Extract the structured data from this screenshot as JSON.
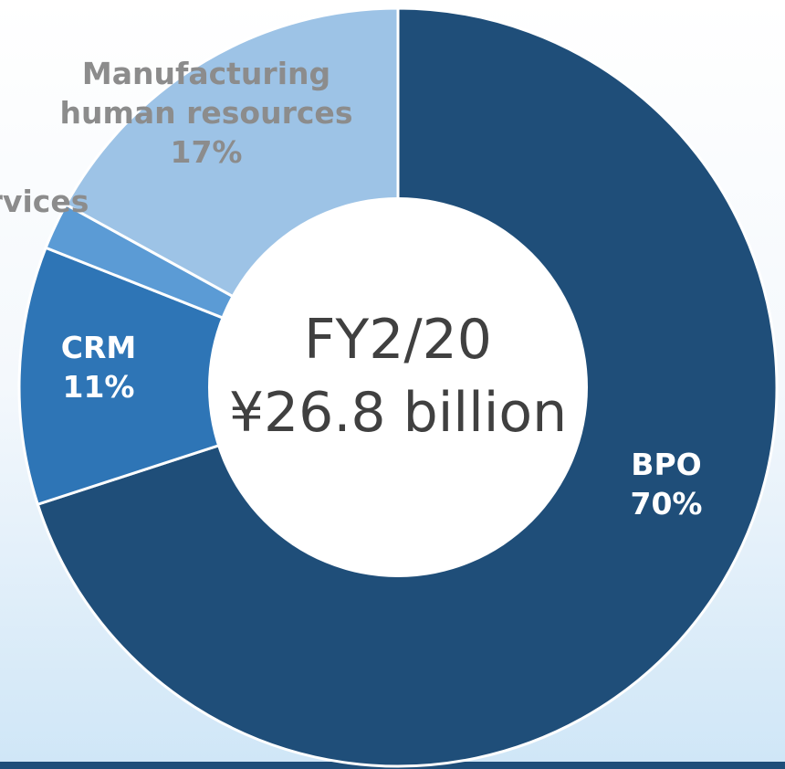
{
  "chart_data": {
    "type": "donut",
    "categories": [
      "BPO",
      "CRM",
      "rvices",
      "Manufacturing human resources"
    ],
    "values": [
      70,
      11,
      2,
      17
    ],
    "value_labels": [
      "70%",
      "11%",
      null,
      "17%"
    ],
    "colors": [
      "#1f4e79",
      "#2e75b6",
      "#5b9bd5",
      "#9dc3e6"
    ],
    "center_text": [
      "FY2/20",
      "¥26.8 billion"
    ]
  }
}
